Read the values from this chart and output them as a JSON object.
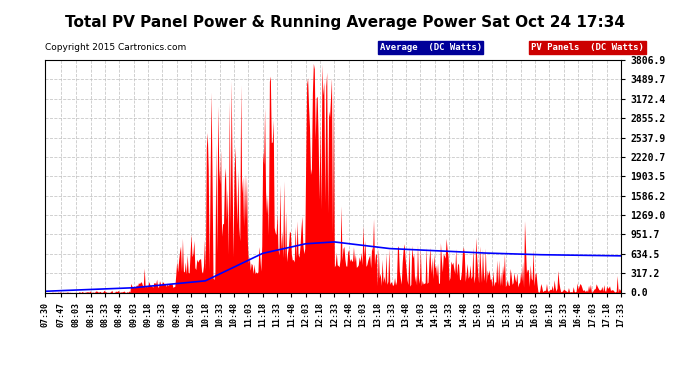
{
  "title": "Total PV Panel Power & Running Average Power Sat Oct 24 17:34",
  "copyright": "Copyright 2015 Cartronics.com",
  "legend_avg": "Average  (DC Watts)",
  "legend_pv": "PV Panels  (DC Watts)",
  "yticks": [
    0.0,
    317.2,
    634.5,
    951.7,
    1269.0,
    1586.2,
    1903.5,
    2220.7,
    2537.9,
    2855.2,
    3172.4,
    3489.7,
    3806.9
  ],
  "ymax": 3806.9,
  "bg_color": "#ffffff",
  "plot_bg_color": "#ffffff",
  "grid_color": "#bbbbbb",
  "bar_color": "#ff0000",
  "avg_color": "#0000ff",
  "title_fontsize": 11,
  "xtick_labels": [
    "07:30",
    "07:47",
    "08:03",
    "08:18",
    "08:33",
    "08:48",
    "09:03",
    "09:18",
    "09:33",
    "09:48",
    "10:03",
    "10:18",
    "10:33",
    "10:48",
    "11:03",
    "11:18",
    "11:33",
    "11:48",
    "12:03",
    "12:18",
    "12:33",
    "12:48",
    "13:03",
    "13:18",
    "13:33",
    "13:48",
    "14:03",
    "14:18",
    "14:33",
    "14:48",
    "15:03",
    "15:18",
    "15:33",
    "15:48",
    "16:03",
    "16:18",
    "16:33",
    "16:48",
    "17:03",
    "17:18",
    "17:33"
  ]
}
